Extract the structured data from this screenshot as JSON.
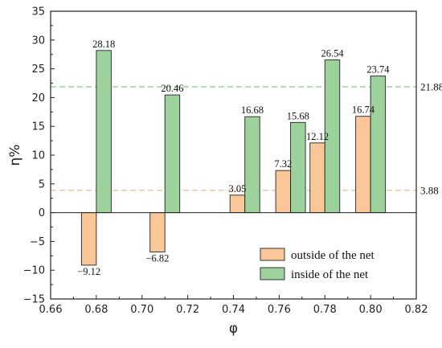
{
  "chart_data": {
    "type": "bar",
    "xlabel": "φ",
    "ylabel": "η%",
    "xlim": [
      0.66,
      0.82
    ],
    "ylim": [
      -15,
      35
    ],
    "xticks": [
      "0.66",
      "0.68",
      "0.70",
      "0.72",
      "0.74",
      "0.76",
      "0.78",
      "0.80",
      "0.82"
    ],
    "yticks": [
      "−15",
      "−10",
      "−5",
      "0",
      "5",
      "10",
      "15",
      "20",
      "25",
      "30",
      "35"
    ],
    "x": [
      0.68,
      0.71,
      0.745,
      0.765,
      0.78,
      0.8
    ],
    "series": [
      {
        "name": "outside of the net",
        "color": "#FAC898",
        "values": [
          -9.12,
          -6.82,
          3.05,
          7.32,
          12.12,
          16.74
        ],
        "labels": [
          "−9.12",
          "−6.82",
          "3.05",
          "7.32",
          "12.12",
          "16.74"
        ]
      },
      {
        "name": "inside of the net",
        "color": "#9DD29C",
        "values": [
          28.18,
          20.46,
          16.68,
          15.68,
          26.54,
          23.74
        ],
        "labels": [
          "28.18",
          "20.46",
          "16.68",
          "15.68",
          "26.54",
          "23.74"
        ]
      }
    ],
    "reference_lines": [
      {
        "value": 21.88,
        "label": "21.88",
        "color": "#7CC47A",
        "style": "dashed"
      },
      {
        "value": 3.88,
        "label": "3.88",
        "color": "#F4B183",
        "style": "dashed"
      }
    ],
    "legend": {
      "position": "bottom-right"
    },
    "grid": false
  }
}
